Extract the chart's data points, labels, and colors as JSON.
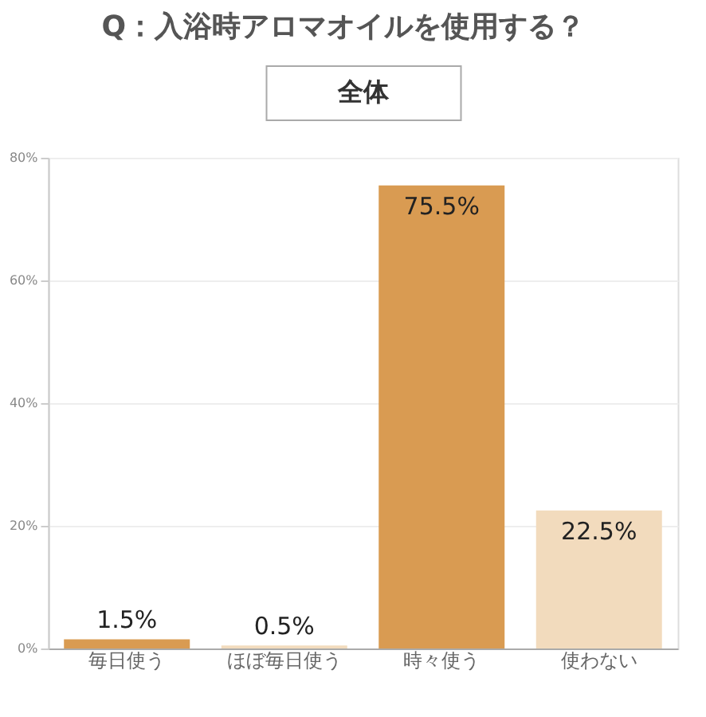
{
  "chart_data": {
    "type": "bar",
    "title": "Q：入浴時アロマオイルを使用する？",
    "subtitle": "全体",
    "categories": [
      "毎日使う",
      "ほぼ毎日使う",
      "時々使う",
      "使わない"
    ],
    "values": [
      1.5,
      0.5,
      75.5,
      22.5
    ],
    "colors": [
      "#d99b52",
      "#f2dbbd",
      "#d99b52",
      "#f2dbbd"
    ],
    "value_labels": [
      "1.5%",
      "0.5%",
      "75.5%",
      "22.5%"
    ],
    "ylim": [
      0,
      80
    ],
    "yticks": [
      {
        "value": 0,
        "label": "0%"
      },
      {
        "value": 20,
        "label": "20%"
      },
      {
        "value": 40,
        "label": "40%"
      },
      {
        "value": 60,
        "label": "60%"
      },
      {
        "value": 80,
        "label": "80%"
      }
    ],
    "grid": "y"
  }
}
